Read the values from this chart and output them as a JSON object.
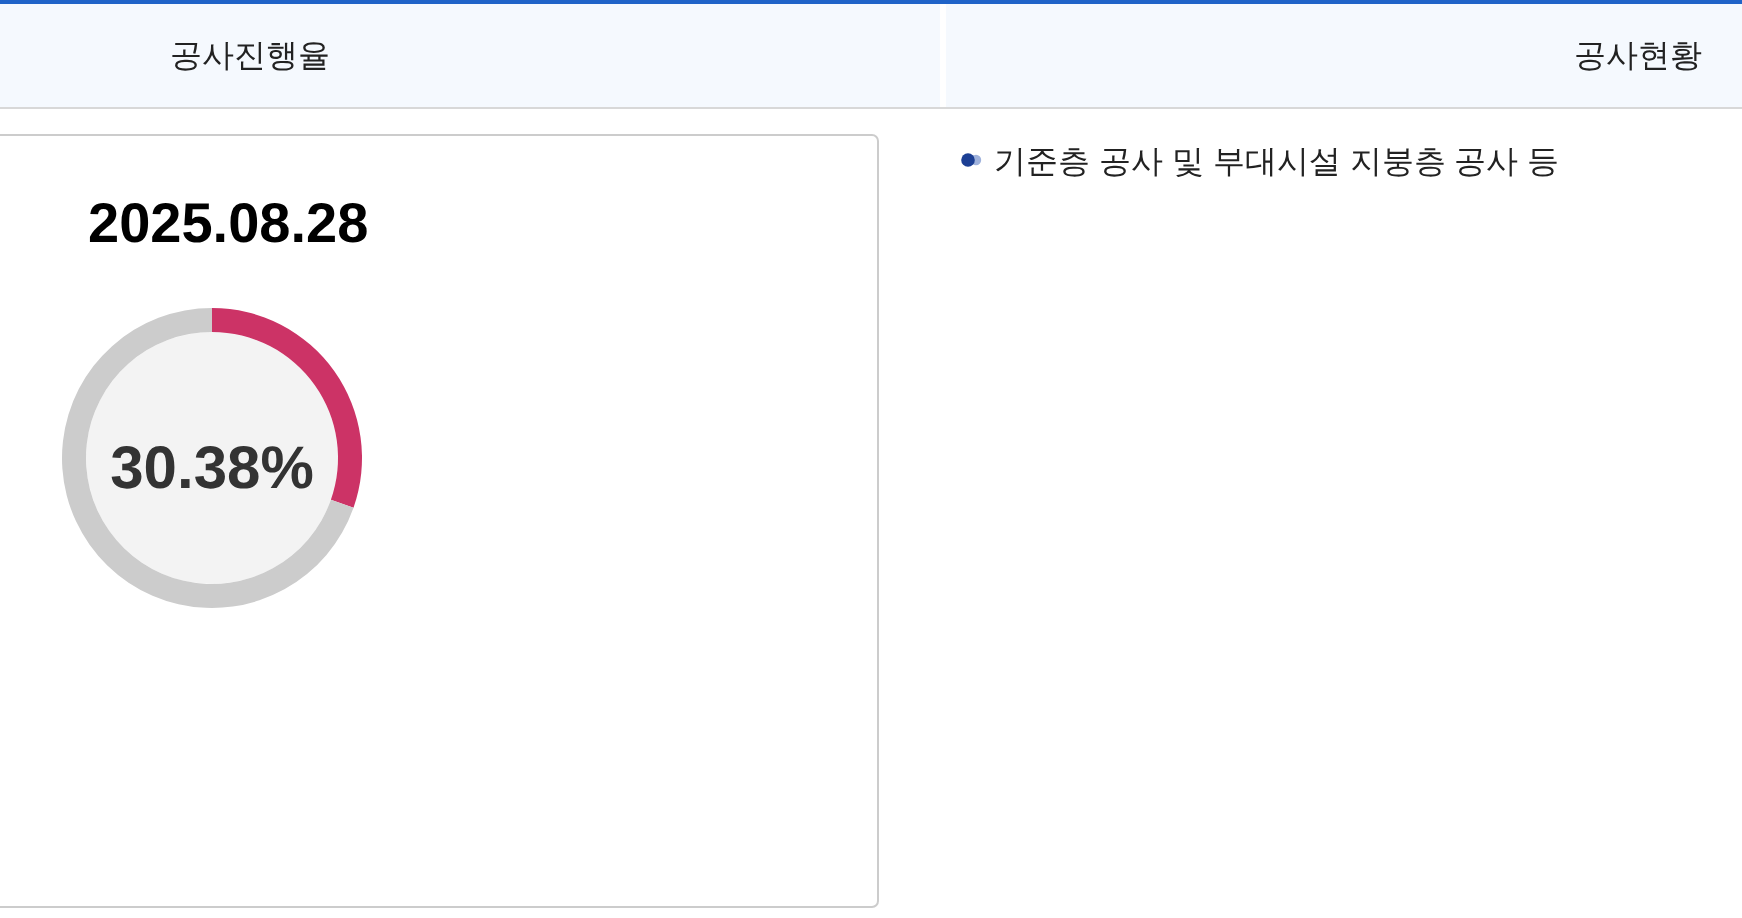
{
  "chart_data": {
    "type": "donut",
    "title": "공사진행율",
    "subtitle": "2025.08.28",
    "categories": [
      null,
      null
    ],
    "values": [
      30.38,
      69.62
    ],
    "colors": [
      "#cc3366",
      "#cccccc"
    ],
    "annotations": [
      "30.38%",
      "공사현황",
      "기준층 공사 및 부대시설 지붕층 공사 등"
    ]
  }
}
